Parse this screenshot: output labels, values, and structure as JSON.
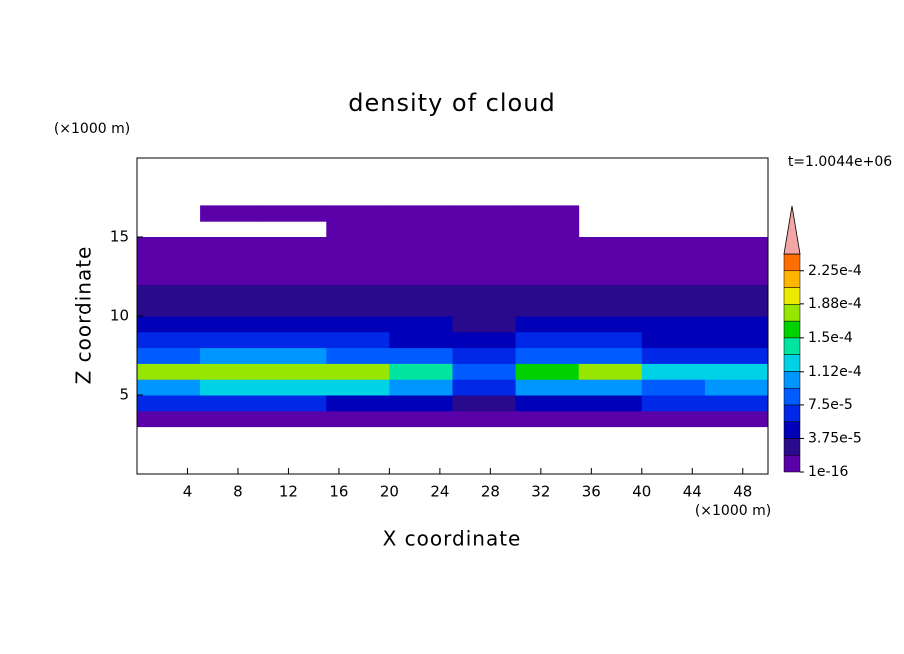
{
  "chart_data": {
    "type": "contour",
    "title": "density of cloud",
    "time_label": "t=1.0044e+06",
    "x_label": "X coordinate",
    "y_label": "Z coordinate",
    "x_unit": "(×1000 m)",
    "y_unit": "(×1000 m)",
    "xlim": [
      0,
      50
    ],
    "ylim": [
      0,
      20
    ],
    "xticks": [
      4,
      8,
      12,
      16,
      20,
      24,
      28,
      32,
      36,
      40,
      44,
      48
    ],
    "yticks": [
      5,
      10,
      15
    ],
    "x_edges": [
      0,
      5,
      10,
      15,
      20,
      25,
      30,
      35,
      40,
      45,
      50
    ],
    "z_edges": [
      3,
      4,
      5,
      6,
      7,
      8,
      9,
      10,
      11,
      12,
      13,
      14,
      15,
      16,
      17
    ],
    "values": [
      [
        1e-05,
        1e-05,
        1e-05,
        1e-05,
        1e-05,
        1e-05,
        1e-05,
        1e-05,
        1e-05,
        1e-05
      ],
      [
        6e-05,
        6e-05,
        6e-05,
        5.5e-05,
        5.5e-05,
        3e-05,
        5e-05,
        5.5e-05,
        6e-05,
        6e-05
      ],
      [
        0.00011,
        0.00012,
        0.00012,
        0.000115,
        0.0001,
        6e-05,
        0.0001,
        0.00011,
        9e-05,
        0.0001
      ],
      [
        0.00017,
        0.00018,
        0.000175,
        0.00017,
        0.00015,
        9e-05,
        0.00016,
        0.00017,
        0.00012,
        0.00013
      ],
      [
        9e-05,
        0.0001,
        9.5e-05,
        9e-05,
        8e-05,
        6e-05,
        8e-05,
        9e-05,
        7e-05,
        7e-05
      ],
      [
        6e-05,
        6.5e-05,
        6e-05,
        6e-05,
        5.5e-05,
        5e-05,
        6e-05,
        6e-05,
        5.5e-05,
        5e-05
      ],
      [
        4e-05,
        4.5e-05,
        4e-05,
        4e-05,
        4e-05,
        3.5e-05,
        4e-05,
        4e-05,
        5e-05,
        4e-05
      ],
      [
        3e-05,
        3e-05,
        3e-05,
        3e-05,
        3e-05,
        3e-05,
        3e-05,
        3e-05,
        3e-05,
        3e-05
      ],
      [
        2e-05,
        2e-05,
        2e-05,
        2e-05,
        2e-05,
        2e-05,
        2e-05,
        2e-05,
        2e-05,
        2e-05
      ],
      [
        1.5e-05,
        1.5e-05,
        1.5e-05,
        1.5e-05,
        1.5e-05,
        1.5e-05,
        1.5e-05,
        1.5e-05,
        1.5e-05,
        1.5e-05
      ],
      [
        1e-05,
        1e-05,
        1e-05,
        1e-05,
        1e-05,
        1e-05,
        1e-05,
        1e-05,
        1e-05,
        1e-05
      ],
      [
        5e-06,
        5e-06,
        5e-06,
        5e-06,
        5e-06,
        5e-06,
        5e-06,
        5e-06,
        5e-06,
        5e-06
      ],
      [
        null,
        null,
        null,
        5e-06,
        5e-06,
        5e-06,
        5e-06,
        null,
        null,
        null
      ],
      [
        null,
        5e-06,
        5e-06,
        5e-06,
        5e-06,
        5e-06,
        5e-06,
        null,
        null,
        null
      ]
    ],
    "clim": [
      1e-16,
      0.00024375
    ],
    "colors": [
      "#5a00a8",
      "#2a0a8c",
      "#0000b8",
      "#0028e6",
      "#005cff",
      "#0096ff",
      "#00d2e6",
      "#00e6a0",
      "#00d200",
      "#96e600",
      "#ebeb00",
      "#ffb400",
      "#ff6e00"
    ],
    "extend_color": "#f4a6a6",
    "colorbar_ticks": [
      1e-16,
      {
        "value": 3.75e-05,
        "label": "3.75e-5"
      },
      {
        "value": 7.5e-05,
        "label": "7.5e-5"
      },
      {
        "value": 0.000112,
        "label": "1.12e-4"
      },
      {
        "value": 0.00015,
        "label": "1.5e-4"
      },
      {
        "value": 0.000188,
        "label": "1.88e-4"
      },
      {
        "value": 0.000225,
        "label": "2.25e-4"
      }
    ]
  }
}
